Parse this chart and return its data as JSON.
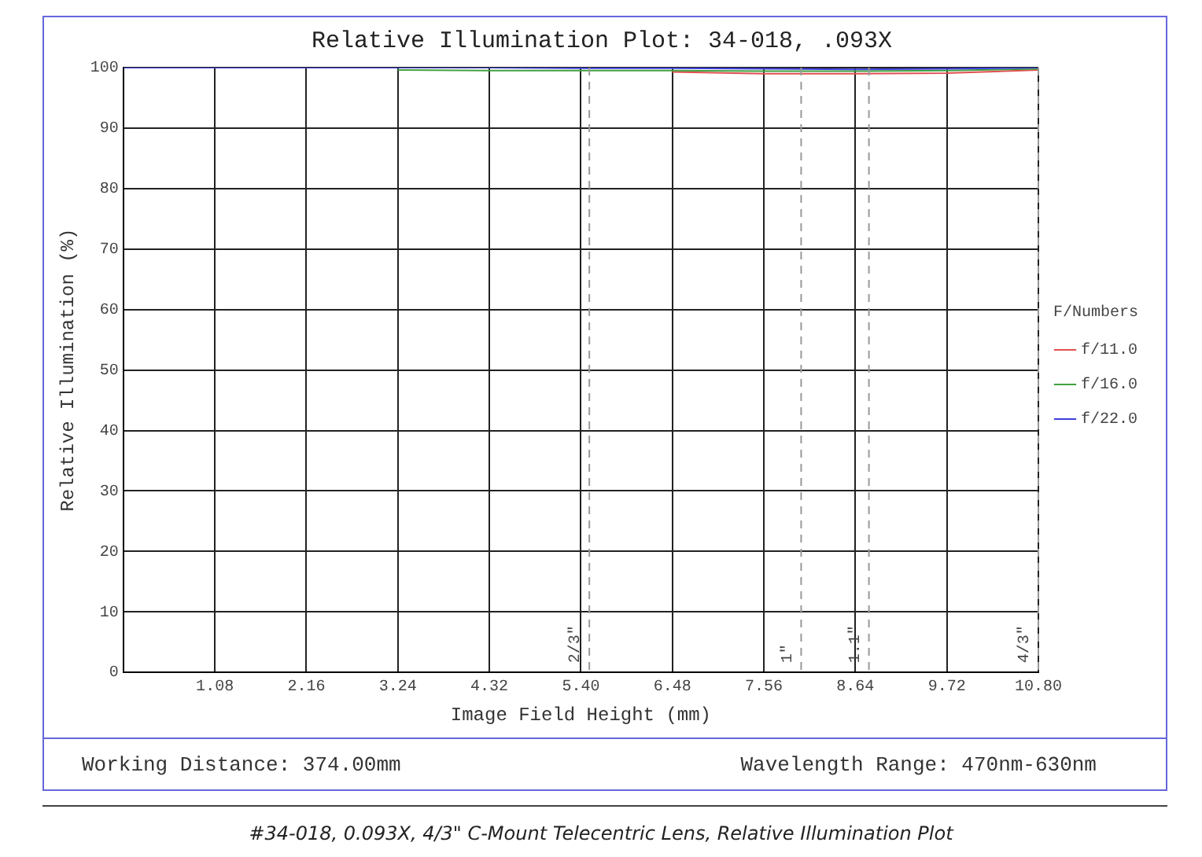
{
  "chart_data": {
    "type": "line",
    "title": "Relative Illumination Plot: 34-018, .093X",
    "xlabel": "Image Field Height (mm)",
    "ylabel": "Relative Illumination (%)",
    "legend_title": "F/Numbers",
    "x": [
      0,
      1.08,
      2.16,
      3.24,
      4.32,
      5.4,
      6.48,
      7.56,
      8.64,
      9.72,
      10.8
    ],
    "series": [
      {
        "name": "f/11.0",
        "color": "#e05050",
        "values": [
          null,
          null,
          null,
          null,
          null,
          null,
          99.3,
          99.0,
          99.0,
          99.1,
          99.6
        ]
      },
      {
        "name": "f/16.0",
        "color": "#40a040",
        "values": [
          null,
          null,
          null,
          99.6,
          99.5,
          99.5,
          99.5,
          99.4,
          99.4,
          99.5,
          99.8
        ]
      },
      {
        "name": "f/22.0",
        "color": "#4040e0",
        "values": [
          100,
          100,
          100,
          100,
          100,
          99.9,
          99.9,
          99.8,
          99.7,
          99.8,
          100
        ]
      }
    ],
    "xlim": [
      0,
      10.8
    ],
    "ylim": [
      0,
      100
    ],
    "xticks": [
      {
        "value": 0,
        "label": null
      },
      1.08,
      2.16,
      3.24,
      4.32,
      {
        "value": 5.4,
        "label": "5.40"
      },
      6.48,
      7.56,
      8.64,
      9.72,
      {
        "value": 10.8,
        "label": "10.80"
      }
    ],
    "yticks": [
      0,
      10,
      20,
      30,
      40,
      50,
      60,
      70,
      80,
      90,
      100
    ],
    "grid": true,
    "legend": "right",
    "marker": "none",
    "line_style": "solid",
    "ref_lines": [
      {
        "axis": "x",
        "value": 5.5,
        "color": "#999999",
        "line_style": "dashed"
      },
      {
        "axis": "x",
        "value": 8,
        "color": "#999999",
        "line_style": "dashed"
      },
      {
        "axis": "x",
        "value": 8.8,
        "color": "#999999",
        "line_style": "dashed"
      },
      {
        "axis": "x",
        "value": 10.8,
        "color": "#999999",
        "line_style": "dashed"
      }
    ],
    "annotations": [
      "Working Distance: 374.00mm",
      "Wavelength Range: 470nm-630nm",
      "#34-018, 0.093X, 4/3\" C-Mount Telecentric Lens, Relative Illumination Plot",
      {
        "text": "2/3\"",
        "x": 5.5,
        "y": 0
      },
      {
        "text": "1\"",
        "x": 8,
        "y": 0
      },
      {
        "text": "1.1\"",
        "x": 8.8,
        "y": 0
      },
      {
        "text": "4/3\"",
        "x": 10.8,
        "y": 0
      }
    ]
  }
}
